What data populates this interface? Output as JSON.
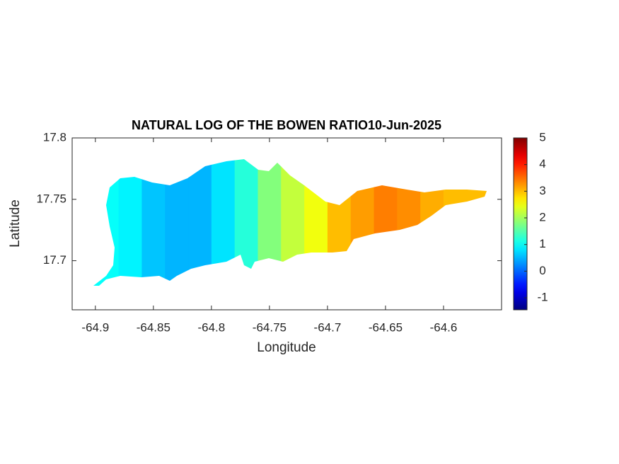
{
  "chart_data": {
    "type": "heatmap",
    "title": "NATURAL LOG OF THE BOWEN RATIO10-Jun-2025",
    "x_label": "Longitude",
    "y_label": "Latitude",
    "x": [
      -64.91,
      -64.89,
      -64.87,
      -64.85,
      -64.83,
      -64.81,
      -64.79,
      -64.77,
      -64.75,
      -64.73,
      -64.71,
      -64.69,
      -64.67,
      -64.65,
      -64.63,
      -64.61,
      -64.59,
      -64.57
    ],
    "values": [
      1.0,
      1.0,
      0.9,
      0.6,
      0.5,
      0.5,
      0.8,
      1.2,
      1.8,
      2.2,
      2.5,
      3.0,
      3.2,
      3.4,
      3.3,
      3.1,
      3.0,
      3.0
    ],
    "xlim": [
      -64.92,
      -64.55
    ],
    "xticks": [
      -64.9,
      -64.85,
      -64.8,
      -64.75,
      -64.7,
      -64.65,
      -64.6
    ],
    "ylim": [
      17.66,
      17.8
    ],
    "yticks": [
      17.7,
      17.75,
      17.8
    ],
    "colormap": "jet",
    "clim": [
      -1.45,
      5
    ],
    "cticks": [
      -1,
      0,
      1,
      2,
      3,
      4,
      5
    ]
  }
}
